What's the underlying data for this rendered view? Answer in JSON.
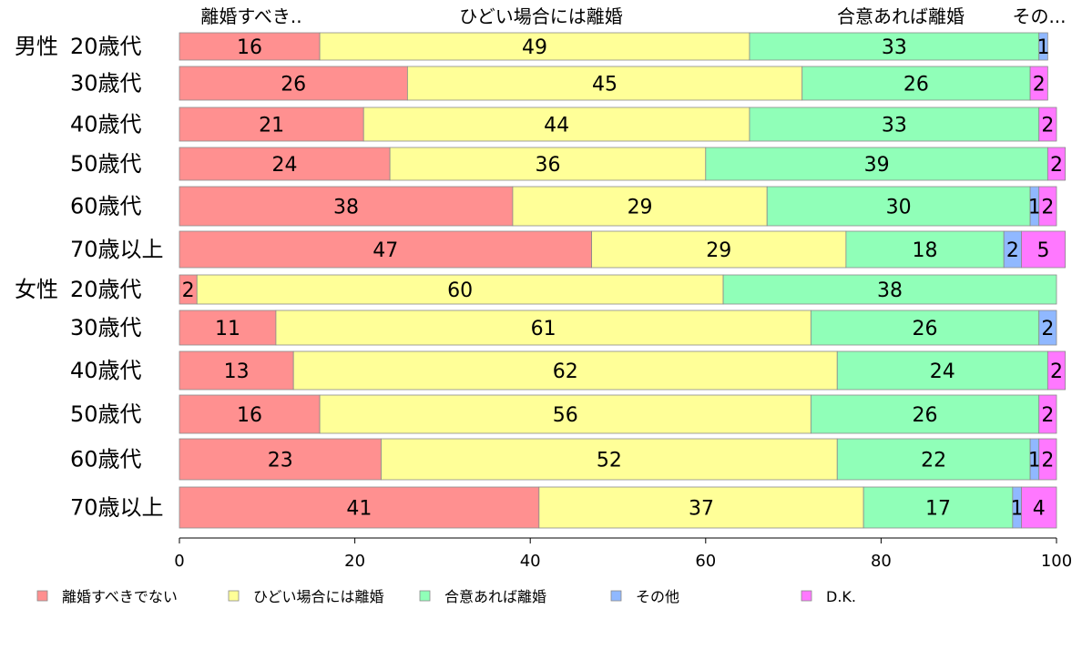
{
  "chart_data": {
    "type": "bar",
    "orientation": "horizontal",
    "stacked": true,
    "xlim": [
      0,
      100
    ],
    "x_ticks": [
      "0",
      "20",
      "40",
      "60",
      "80",
      "100"
    ],
    "column_headers": [
      "離婚すべき..",
      "ひどい場合には離婚",
      "合意あれば離婚",
      "その..."
    ],
    "groups": [
      {
        "label": "男性",
        "first_index": 0
      },
      {
        "label": "女性",
        "first_index": 6
      }
    ],
    "categories": [
      "20歳代",
      "30歳代",
      "40歳代",
      "50歳代",
      "60歳代",
      "70歳以上",
      "20歳代",
      "30歳代",
      "40歳代",
      "50歳代",
      "60歳代",
      "70歳以上"
    ],
    "series": [
      {
        "name": "離婚すべきでない",
        "color": "#ff9090",
        "values": [
          16,
          26,
          21,
          24,
          38,
          47,
          2,
          11,
          13,
          16,
          23,
          41
        ]
      },
      {
        "name": "ひどい場合には離婚",
        "color": "#ffff98",
        "values": [
          49,
          45,
          44,
          36,
          29,
          29,
          60,
          61,
          62,
          56,
          52,
          37
        ]
      },
      {
        "name": "合意あれば離婚",
        "color": "#90ffb8",
        "values": [
          33,
          26,
          33,
          39,
          30,
          18,
          38,
          26,
          24,
          26,
          22,
          17
        ]
      },
      {
        "name": "その他",
        "color": "#90b8ff",
        "values": [
          1,
          0,
          0,
          0,
          1,
          2,
          0,
          2,
          0,
          0,
          1,
          1
        ]
      },
      {
        "name": "D.K.",
        "color": "#ff78ff",
        "values": [
          0,
          2,
          2,
          2,
          2,
          5,
          0,
          0,
          2,
          2,
          2,
          4
        ]
      }
    ],
    "legend_position": "bottom",
    "grid": false
  }
}
